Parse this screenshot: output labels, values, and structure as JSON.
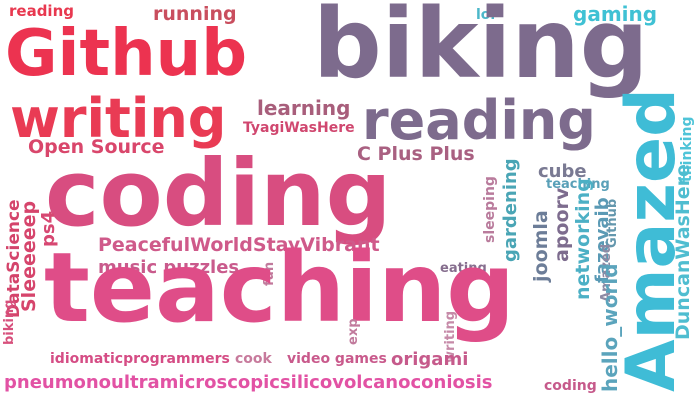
{
  "word_cloud": {
    "words": [
      {
        "text": "reading",
        "color": "#e8384f"
      },
      {
        "text": "running",
        "color": "#c94e5e"
      },
      {
        "text": "lol",
        "color": "#4bb7c9"
      },
      {
        "text": "gaming",
        "color": "#3fc1d4"
      },
      {
        "text": "Github",
        "color": "#ec3350"
      },
      {
        "text": "biking",
        "color": "#7d6b8d"
      },
      {
        "text": "writing",
        "color": "#e93b54"
      },
      {
        "text": "reading",
        "color": "#7d6b8d"
      },
      {
        "text": "learning",
        "color": "#a85e7b"
      },
      {
        "text": "TyagiWasHere",
        "color": "#d0476f"
      },
      {
        "text": "Open Source",
        "color": "#d9466b"
      },
      {
        "text": "C Plus Plus",
        "color": "#a96081"
      },
      {
        "text": "coding",
        "color": "#d84d80"
      },
      {
        "text": "Amazed",
        "color": "#3fbcd6"
      },
      {
        "text": "thinking",
        "color": "#4fc4d8"
      },
      {
        "text": "DuncanWasHere",
        "color": "#4fbdd0"
      },
      {
        "text": "DataScience",
        "color": "#d4446b"
      },
      {
        "text": "Sleeeeeep",
        "color": "#d6456c"
      },
      {
        "text": "ps4",
        "color": "#d74872"
      },
      {
        "text": "sleeping",
        "color": "#b97b9c"
      },
      {
        "text": "gardening",
        "color": "#4aa5b5"
      },
      {
        "text": "cube",
        "color": "#7a7a93"
      },
      {
        "text": "teaching",
        "color": "#5aa0b8"
      },
      {
        "text": "joomla",
        "color": "#6c7d98"
      },
      {
        "text": "apoorv",
        "color": "#7d6c8e"
      },
      {
        "text": "networking",
        "color": "#4cb0c5"
      },
      {
        "text": "fazevaib",
        "color": "#5a9ab5"
      },
      {
        "text": "Github",
        "color": "#6497ad"
      },
      {
        "text": "Amazed",
        "color": "#8d8aa4"
      },
      {
        "text": "PeacefulWorldStayVibrant",
        "color": "#cf5a8a"
      },
      {
        "text": "music puzzles",
        "color": "#c95a8c"
      },
      {
        "text": "fun",
        "color": "#c17a9c"
      },
      {
        "text": "eating",
        "color": "#866e8e"
      },
      {
        "text": "teaching",
        "color": "#df4d88"
      },
      {
        "text": "hello_world",
        "color": "#5ba4bc"
      },
      {
        "text": "biking",
        "color": "#d7507c"
      },
      {
        "text": "exp",
        "color": "#c17a9c"
      },
      {
        "text": "writing",
        "color": "#c68aa8"
      },
      {
        "text": "idiomaticprogrammers",
        "color": "#d54d85"
      },
      {
        "text": "cook",
        "color": "#c77a9c"
      },
      {
        "text": "video games",
        "color": "#c95a8c"
      },
      {
        "text": "origami",
        "color": "#c65a8b"
      },
      {
        "text": "pneumonoultramicroscopicsilicovolcanoconiosis",
        "color": "#e252a4"
      },
      {
        "text": "coding",
        "color": "#c65a8b"
      }
    ]
  }
}
